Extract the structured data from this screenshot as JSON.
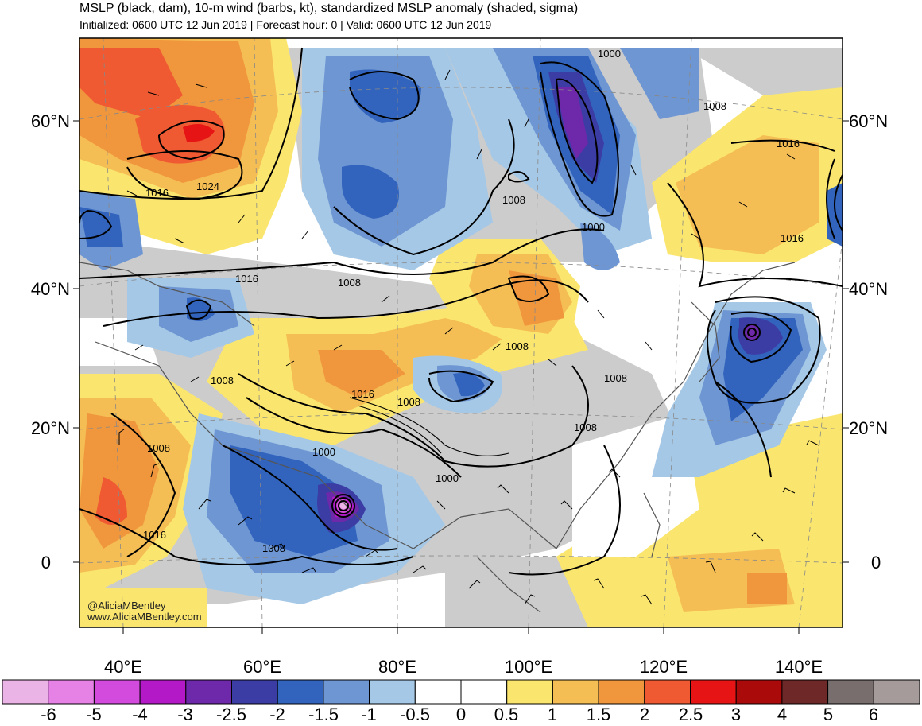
{
  "header": {
    "title": "MSLP (black, dam), 10-m wind (barbs, kt), standardized MSLP anomaly (shaded, sigma)",
    "subtitle": "Initialized: 0600 UTC 12 Jun 2019 | Forecast hour: 0 | Valid: 0600 UTC 12 Jun 2019"
  },
  "map": {
    "lat_labels": [
      "60°N",
      "40°N",
      "20°N",
      "0"
    ],
    "lon_labels": [
      "40°E",
      "60°E",
      "80°E",
      "100°E",
      "120°E",
      "140°E"
    ],
    "contour_labels": [
      "1000",
      "1000",
      "1000",
      "1000",
      "1008",
      "1008",
      "1008",
      "1008",
      "1008",
      "1008",
      "1008",
      "1008",
      "1008",
      "1008",
      "1016",
      "1016",
      "1016",
      "1016",
      "1016",
      "1016",
      "1024"
    ],
    "credit": {
      "handle": "@AliciaMBentley",
      "url": "www.AliciaMBentley.com"
    }
  },
  "colorbar": {
    "labels": [
      "-6",
      "-5",
      "-4",
      "-3",
      "-2.5",
      "-2",
      "-1.5",
      "-1",
      "-0.5",
      "0",
      "0.5",
      "1",
      "1.5",
      "2",
      "2.5",
      "3",
      "4",
      "5",
      "6"
    ],
    "colors": [
      "#ebb4e6",
      "#e682e6",
      "#d24bdc",
      "#b419c8",
      "#6e28aa",
      "#3c3ca5",
      "#3264be",
      "#6e96d2",
      "#a5c8e6",
      "#ffffff",
      "#ffffff",
      "#fae66e",
      "#f5be55",
      "#f0963c",
      "#f05a32",
      "#e61414",
      "#aa0a0a",
      "#6e2828",
      "#786e6e",
      "#a59b9b"
    ]
  }
}
